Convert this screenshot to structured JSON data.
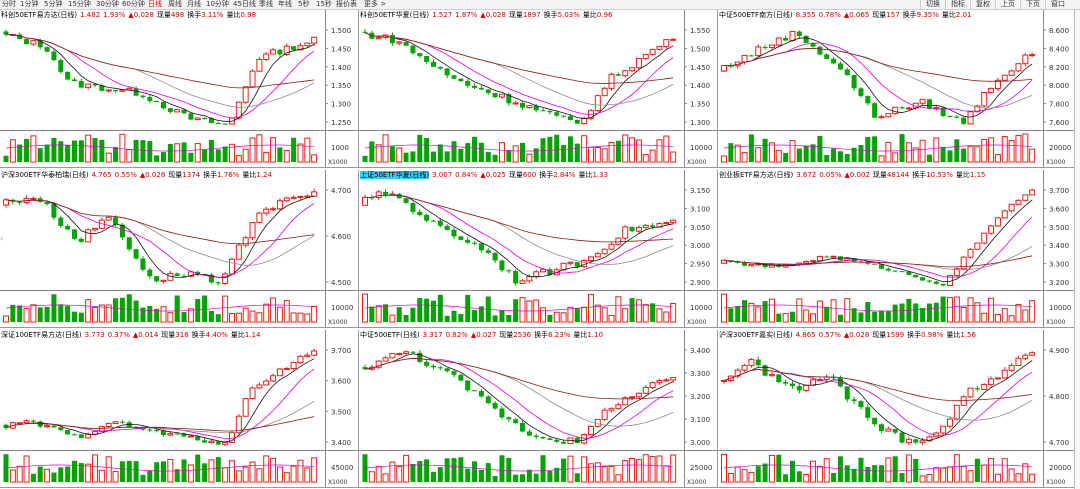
{
  "toolbar": {
    "periods": [
      "分时",
      "1分钟",
      "5分钟",
      "15分钟",
      "30分钟",
      "60分钟",
      "日线",
      "周线",
      "月线",
      "10分钟",
      "45日线",
      "季线",
      "年线",
      "5秒",
      "15秒",
      "报价表",
      "更多 >"
    ],
    "active": "日线",
    "right_buttons": [
      "切换",
      "指标",
      "复权",
      "上页",
      "下页",
      "窗口",
      "自选"
    ]
  },
  "colors": {
    "up": "#e62117",
    "down": "#00a300",
    "ma5": "#111111",
    "ma10": "#e000e0",
    "ma20": "#8c8c8c",
    "ma60": "#8b1a1a",
    "hl": "#33ccff"
  },
  "panels": [
    {
      "name": "科创50ETF易方达(日线)",
      "price": "1.482",
      "pct": "1.93%",
      "chg": "▲0.028",
      "vol_label": "现量",
      "vol": "498",
      "turn_label": "换手",
      "turn": "3.11%",
      "ratio_label": "量比",
      "ratio": "0.98",
      "ticks": [
        "1.500",
        "1.450",
        "1.400",
        "1.350",
        "1.300",
        "1.250"
      ],
      "vol_tick": "1000",
      "unit": "X1000",
      "highlight": false
    },
    {
      "name": "科创50ETF华夏(日线)",
      "price": "1.527",
      "pct": "1.87%",
      "chg": "▲0.028",
      "vol_label": "现量",
      "vol": "1897",
      "turn_label": "换手",
      "turn": "5.03%",
      "ratio_label": "量比",
      "ratio": "0.96",
      "ticks": [
        "1.550",
        "1.500",
        "1.450",
        "1.400",
        "1.350",
        "1.300"
      ],
      "vol_tick": "10000",
      "unit": "X1000",
      "highlight": false
    },
    {
      "name": "中证500ETF南方(日线)",
      "price": "8.355",
      "pct": "0.78%",
      "chg": "▲0.065",
      "vol_label": "现量",
      "vol": "157",
      "turn_label": "换手",
      "turn": "9.35%",
      "ratio_label": "量比",
      "ratio": "2.01",
      "ticks": [
        "8.600",
        "8.400",
        "8.200",
        "8.000",
        "7.800",
        "7.600"
      ],
      "vol_tick": "20000",
      "unit": "X1000",
      "highlight": false
    },
    {
      "name": "沪深300ETF华泰柏瑞(日线)",
      "price": "4.765",
      "pct": "0.55%",
      "chg": "▲0.026",
      "vol_label": "现量",
      "vol": "1374",
      "turn_label": "换手",
      "turn": "1.76%",
      "ratio_label": "量比",
      "ratio": "1.24",
      "ticks": [
        "4.700",
        "4.600",
        "4.500"
      ],
      "vol_tick": "10000",
      "unit": "X1000",
      "highlight": false
    },
    {
      "name": "上证50ETF华夏(日线)",
      "price": "3.007",
      "pct": "0.84%",
      "chg": "▲0.025",
      "vol_label": "现量",
      "vol": "600",
      "turn_label": "换手",
      "turn": "2.84%",
      "ratio_label": "量比",
      "ratio": "1.33",
      "ticks": [
        "3.150",
        "3.100",
        "3.050",
        "3.000",
        "2.950",
        "2.900"
      ],
      "vol_tick": "10000",
      "unit": "X1000",
      "highlight": true
    },
    {
      "name": "创业板ETF易方达(日线)",
      "price": "3.672",
      "pct": "0.05%",
      "chg": "▲0.002",
      "vol_label": "现量",
      "vol": "48144",
      "turn_label": "换手",
      "turn": "10.53%",
      "ratio_label": "量比",
      "ratio": "1.15",
      "ticks": [
        "3.700",
        "3.600",
        "3.500",
        "3.400",
        "3.300",
        "3.200"
      ],
      "vol_tick": "10000",
      "unit": "X1000",
      "highlight": false
    },
    {
      "name": "深证100ETF易方达(日线)",
      "price": "3.773",
      "pct": "0.37%",
      "chg": "▲0.014",
      "vol_label": "现量",
      "vol": "316",
      "turn_label": "换手",
      "turn": "4.40%",
      "ratio_label": "量比",
      "ratio": "1.14",
      "ticks": [
        "3.700",
        "3.600",
        "3.500",
        "3.400"
      ],
      "vol_tick": "45000",
      "unit": "X1000",
      "highlight": false
    },
    {
      "name": "中证500ETF(日线)",
      "price": "3.317",
      "pct": "0.82%",
      "chg": "▲0.027",
      "vol_label": "现量",
      "vol": "2536",
      "turn_label": "换手",
      "turn": "6.23%",
      "ratio_label": "量比",
      "ratio": "1.10",
      "ticks": [
        "3.400",
        "3.300",
        "3.200",
        "3.100",
        "3.000"
      ],
      "vol_tick": "25000",
      "unit": "X1000",
      "highlight": false
    },
    {
      "name": "沪深300ETF嘉实(日线)",
      "price": "4.865",
      "pct": "0.57%",
      "chg": "▲0.028",
      "vol_label": "现量",
      "vol": "1599",
      "turn_label": "换手",
      "turn": "0.98%",
      "ratio_label": "量比",
      "ratio": "1.56",
      "ticks": [
        "4.900",
        "4.800",
        "4.700"
      ],
      "vol_tick": "20000",
      "unit": "X1000",
      "highlight": false
    }
  ]
}
